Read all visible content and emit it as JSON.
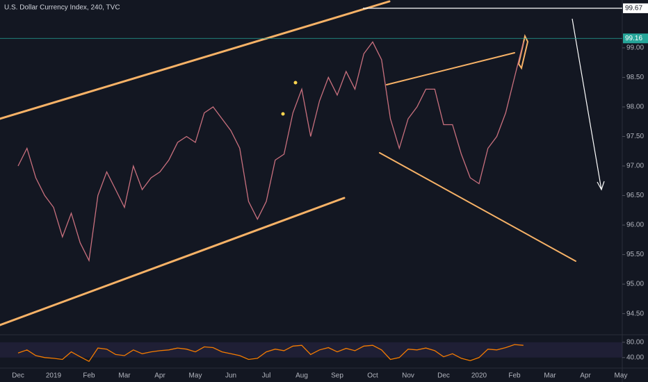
{
  "chart_data": [
    {
      "type": "line",
      "title": "U.S. Dollar Currency Index, 240, TVC",
      "categories": [
        "Dec",
        null,
        null,
        null,
        "2019",
        null,
        null,
        null,
        "Feb",
        null,
        null,
        null,
        "Mar",
        null,
        null,
        null,
        "Apr",
        null,
        null,
        null,
        "May",
        null,
        null,
        null,
        "Jun",
        null,
        null,
        null,
        "Jul",
        null,
        null,
        null,
        "Aug",
        null,
        null,
        null,
        "Sep",
        null,
        null,
        null,
        "Oct",
        null,
        null,
        null,
        "Nov",
        null,
        null,
        null,
        "Dec",
        null,
        null,
        null,
        "2020",
        null,
        null,
        null,
        "Feb",
        null,
        null,
        null,
        "Mar",
        null,
        null,
        null,
        "Apr",
        null,
        null,
        null,
        "May",
        null,
        null,
        null
      ],
      "values": [
        97.0,
        97.3,
        96.8,
        96.5,
        96.3,
        95.8,
        96.2,
        95.7,
        95.4,
        96.5,
        96.9,
        96.6,
        96.3,
        97.0,
        96.6,
        96.8,
        96.9,
        97.1,
        97.4,
        97.5,
        97.4,
        97.9,
        98.0,
        97.8,
        97.6,
        97.3,
        96.4,
        96.1,
        96.4,
        97.1,
        97.2,
        97.9,
        98.3,
        97.5,
        98.1,
        98.5,
        98.2,
        98.6,
        98.3,
        98.9,
        99.1,
        98.8,
        97.8,
        97.3,
        97.8,
        98.0,
        98.3,
        98.3,
        97.7,
        97.7,
        97.2,
        96.8,
        96.7,
        97.3,
        97.5,
        97.9,
        98.5,
        99.1,
        null,
        null,
        null,
        null,
        null,
        null,
        null,
        null,
        null,
        null,
        null,
        null,
        null,
        null
      ],
      "color": "#c9707e",
      "ylim": [
        94.19,
        99.81
      ],
      "yticks": [
        {
          "value": 94.5,
          "label": "94.50"
        },
        {
          "value": 95,
          "label": "95.00"
        },
        {
          "value": 95.5,
          "label": "95.50"
        },
        {
          "value": 96,
          "label": "96.00"
        },
        {
          "value": 96.5,
          "label": "96.50"
        },
        {
          "value": 97,
          "label": "97.00"
        },
        {
          "value": 97.5,
          "label": "97.50"
        },
        {
          "value": 98,
          "label": "98.00"
        },
        {
          "value": 98.5,
          "label": "98.50"
        },
        {
          "value": 99,
          "label": "99.00"
        }
      ],
      "price_lines": [
        99.67,
        99.16
      ]
    },
    {
      "type": "line",
      "values": [
        52,
        60,
        45,
        40,
        38,
        35,
        55,
        42,
        30,
        65,
        62,
        48,
        45,
        60,
        50,
        55,
        58,
        60,
        65,
        62,
        55,
        68,
        66,
        55,
        50,
        45,
        35,
        38,
        55,
        62,
        58,
        70,
        72,
        48,
        60,
        66,
        55,
        64,
        58,
        70,
        72,
        60,
        35,
        40,
        62,
        60,
        65,
        58,
        42,
        50,
        38,
        32,
        40,
        62,
        60,
        66,
        74,
        72,
        null,
        null,
        null,
        null,
        null,
        null,
        null,
        null,
        null,
        null,
        null,
        null,
        null,
        null
      ],
      "color": "#f57c00",
      "ylim": [
        16,
        96
      ],
      "yticks": [
        {
          "value": 40,
          "label": "40.00"
        },
        {
          "value": 80,
          "label": "80.00"
        }
      ]
    }
  ]
}
